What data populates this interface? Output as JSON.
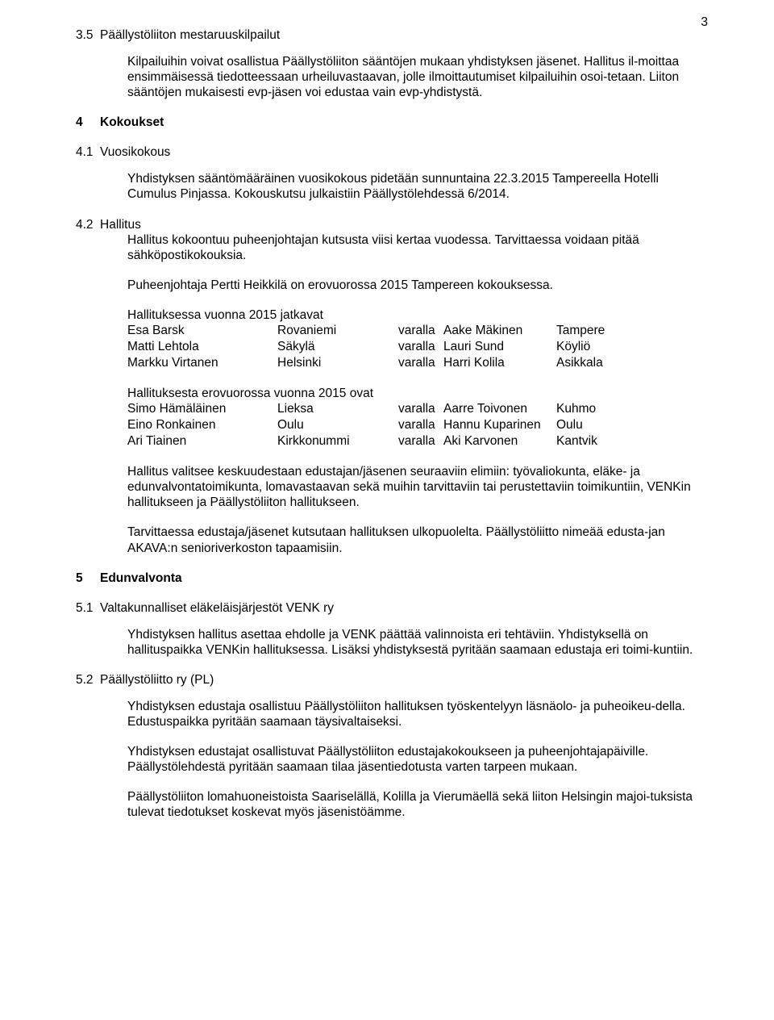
{
  "page_number": "3",
  "s35": {
    "num": "3.5",
    "title": "Päällystöliiton mestaruuskilpailut",
    "p1": "Kilpailuihin voivat osallistua Päällystöliiton sääntöjen mukaan yhdistyksen jäsenet. Hallitus il-moittaa ensimmäisessä tiedotteessaan urheiluvastaavan, jolle ilmoittautumiset kilpailuihin osoi-tetaan. Liiton sääntöjen mukaisesti evp-jäsen voi edustaa vain evp-yhdistystä."
  },
  "s4": {
    "num": "4",
    "title": "Kokoukset"
  },
  "s41": {
    "num": "4.1",
    "title": "Vuosikokous",
    "p1": "Yhdistyksen sääntömääräinen vuosikokous pidetään sunnuntaina 22.3.2015 Tampereella Hotelli Cumulus Pinjassa. Kokouskutsu julkaistiin Päällystölehdessä 6/2014."
  },
  "s42": {
    "num": "4.2",
    "title": "Hallitus",
    "p1": "Hallitus kokoontuu puheenjohtajan kutsusta viisi kertaa vuodessa. Tarvittaessa voidaan pitää sähköpostikokouksia.",
    "p2": "Puheenjohtaja Pertti Heikkilä on erovuorossa 2015 Tampereen kokouksessa.",
    "jatkavat_heading": "Hallituksessa vuonna 2015 jatkavat",
    "jatkavat": [
      {
        "name": "Esa Barsk",
        "city": "Rovaniemi",
        "v": "varalla",
        "vname": "Aake Mäkinen",
        "vcity": "Tampere"
      },
      {
        "name": "Matti Lehtola",
        "city": "Säkylä",
        "v": "varalla",
        "vname": "Lauri Sund",
        "vcity": "Köyliö"
      },
      {
        "name": "Markku Virtanen",
        "city": "Helsinki",
        "v": "varalla",
        "vname": "Harri Kolila",
        "vcity": "Asikkala"
      }
    ],
    "erovuorossa_heading": "Hallituksesta erovuorossa vuonna 2015 ovat",
    "erovuorossa": [
      {
        "name": "Simo Hämäläinen",
        "city": "Lieksa",
        "v": "varalla",
        "vname": "Aarre Toivonen",
        "vcity": "Kuhmo"
      },
      {
        "name": "Eino Ronkainen",
        "city": "Oulu",
        "v": "varalla",
        "vname": "Hannu Kuparinen",
        "vcity": "Oulu"
      },
      {
        "name": "Ari Tiainen",
        "city": "Kirkkonummi",
        "v": "varalla",
        "vname": "Aki Karvonen",
        "vcity": "Kantvik"
      }
    ],
    "p3": "Hallitus valitsee keskuudestaan edustajan/jäsenen seuraaviin elimiin: työvaliokunta, eläke- ja edunvalvontatoimikunta, lomavastaavan sekä muihin tarvittaviin tai perustettaviin toimikuntiin, VENKin hallitukseen ja Päällystöliiton hallitukseen.",
    "p4": "Tarvittaessa edustaja/jäsenet kutsutaan hallituksen ulkopuolelta. Päällystöliitto nimeää edusta-jan AKAVA:n senioriverkoston tapaamisiin."
  },
  "s5": {
    "num": "5",
    "title": "Edunvalvonta"
  },
  "s51": {
    "num": "5.1",
    "title": "Valtakunnalliset eläkeläisjärjestöt VENK ry",
    "p1": "Yhdistyksen hallitus asettaa ehdolle ja VENK päättää valinnoista eri tehtäviin. Yhdistyksellä on hallituspaikka VENKin hallituksessa. Lisäksi yhdistyksestä pyritään saamaan edustaja eri toimi-kuntiin."
  },
  "s52": {
    "num": "5.2",
    "title": "Päällystöliitto ry (PL)",
    "p1": "Yhdistyksen edustaja osallistuu Päällystöliiton hallituksen työskentelyyn läsnäolo- ja puheoikeu-della. Edustuspaikka pyritään saamaan täysivaltaiseksi.",
    "p2": "Yhdistyksen edustajat osallistuvat Päällystöliiton edustajakokoukseen ja puheenjohtajapäiville. Päällystölehdestä pyritään saamaan tilaa jäsentiedotusta varten tarpeen mukaan.",
    "p3": "Päällystöliiton lomahuoneistoista Saariselällä, Kolilla ja Vierumäellä sekä liiton Helsingin majoi-tuksista tulevat tiedotukset koskevat myös jäsenistöämme."
  }
}
